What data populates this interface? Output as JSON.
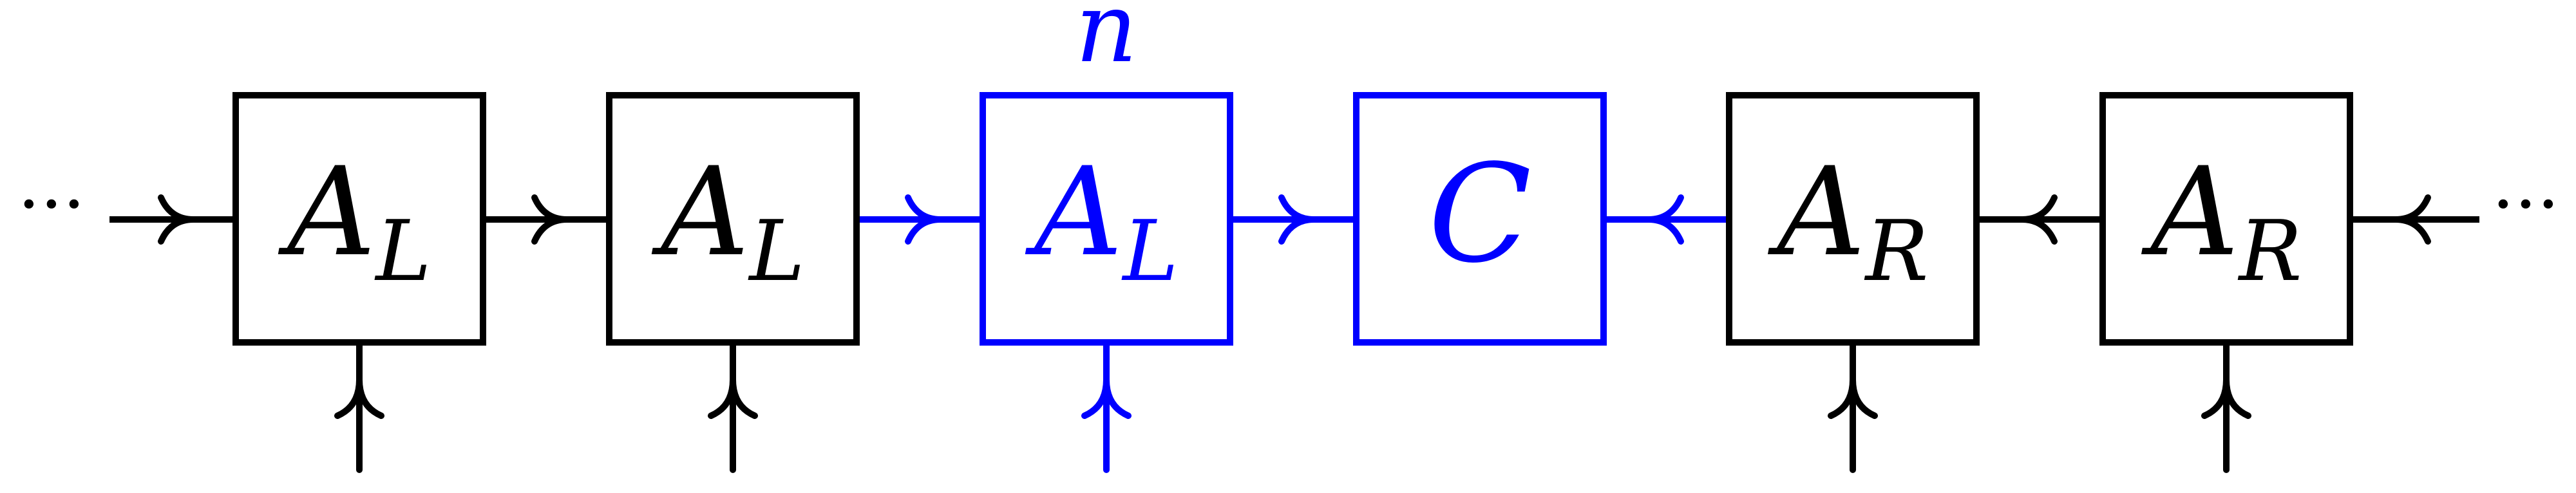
{
  "diagram": {
    "leading_ellipsis": "···",
    "trailing_ellipsis": "···",
    "site_label": "n",
    "tensors": [
      {
        "main": "A",
        "sub": "L",
        "highlighted": false
      },
      {
        "main": "A",
        "sub": "L",
        "highlighted": false
      },
      {
        "main": "A",
        "sub": "L",
        "highlighted": true
      },
      {
        "main": "C",
        "sub": "",
        "highlighted": true
      },
      {
        "main": "A",
        "sub": "R",
        "highlighted": false
      },
      {
        "main": "A",
        "sub": "R",
        "highlighted": false
      }
    ]
  },
  "colors": {
    "default": "#000000",
    "highlight": "#0000ff"
  }
}
